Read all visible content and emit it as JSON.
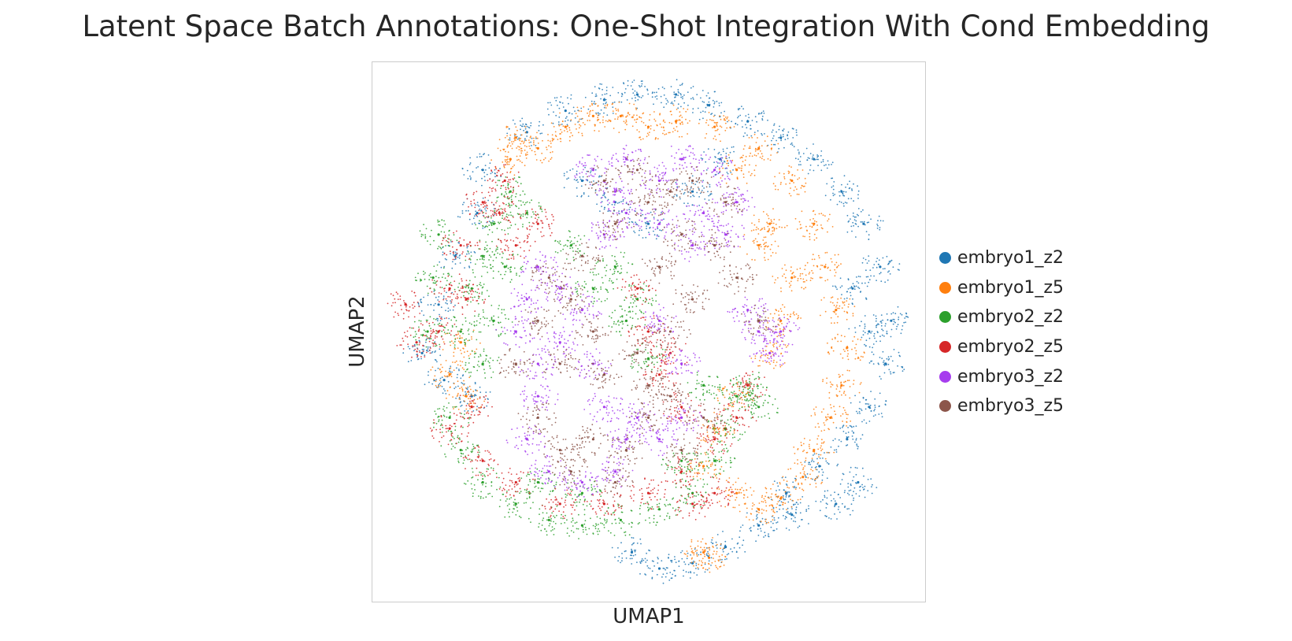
{
  "chart_data": {
    "type": "scatter",
    "title": "Latent Space Batch Annotations: One-Shot Integration With Cond Embedding",
    "xlabel": "UMAP1",
    "ylabel": "UMAP2",
    "grid": false,
    "legend_position": "right",
    "series": [
      {
        "name": "embryo1_z2",
        "color": "#1f77b4",
        "points": [
          [
            0.28,
            0.87
          ],
          [
            0.35,
            0.91
          ],
          [
            0.42,
            0.93
          ],
          [
            0.48,
            0.94
          ],
          [
            0.55,
            0.94
          ],
          [
            0.61,
            0.92
          ],
          [
            0.68,
            0.89
          ],
          [
            0.74,
            0.86
          ],
          [
            0.8,
            0.82
          ],
          [
            0.85,
            0.76
          ],
          [
            0.89,
            0.7
          ],
          [
            0.92,
            0.62
          ],
          [
            0.94,
            0.52
          ],
          [
            0.93,
            0.44
          ],
          [
            0.9,
            0.36
          ],
          [
            0.86,
            0.3
          ],
          [
            0.81,
            0.25
          ],
          [
            0.75,
            0.2
          ],
          [
            0.7,
            0.14
          ],
          [
            0.64,
            0.1
          ],
          [
            0.58,
            0.07
          ],
          [
            0.52,
            0.06
          ],
          [
            0.47,
            0.09
          ],
          [
            0.2,
            0.8
          ],
          [
            0.19,
            0.72
          ],
          [
            0.15,
            0.64
          ],
          [
            0.12,
            0.55
          ],
          [
            0.09,
            0.46
          ],
          [
            0.13,
            0.41
          ],
          [
            0.18,
            0.38
          ],
          [
            0.38,
            0.78
          ],
          [
            0.44,
            0.74
          ],
          [
            0.5,
            0.7
          ],
          [
            0.58,
            0.76
          ],
          [
            0.63,
            0.82
          ],
          [
            0.88,
            0.22
          ],
          [
            0.84,
            0.18
          ],
          [
            0.76,
            0.16
          ],
          [
            0.9,
            0.5
          ],
          [
            0.87,
            0.58
          ]
        ]
      },
      {
        "name": "embryo1_z5",
        "color": "#ff7f0e",
        "points": [
          [
            0.3,
            0.84
          ],
          [
            0.35,
            0.88
          ],
          [
            0.4,
            0.9
          ],
          [
            0.45,
            0.9
          ],
          [
            0.5,
            0.88
          ],
          [
            0.55,
            0.89
          ],
          [
            0.62,
            0.88
          ],
          [
            0.7,
            0.84
          ],
          [
            0.76,
            0.78
          ],
          [
            0.8,
            0.7
          ],
          [
            0.82,
            0.62
          ],
          [
            0.84,
            0.54
          ],
          [
            0.86,
            0.47
          ],
          [
            0.85,
            0.4
          ],
          [
            0.83,
            0.34
          ],
          [
            0.8,
            0.28
          ],
          [
            0.78,
            0.23
          ],
          [
            0.74,
            0.19
          ],
          [
            0.7,
            0.17
          ],
          [
            0.66,
            0.2
          ],
          [
            0.6,
            0.25
          ],
          [
            0.62,
            0.32
          ],
          [
            0.66,
            0.38
          ],
          [
            0.72,
            0.46
          ],
          [
            0.74,
            0.52
          ],
          [
            0.76,
            0.6
          ],
          [
            0.7,
            0.66
          ],
          [
            0.16,
            0.48
          ],
          [
            0.14,
            0.42
          ],
          [
            0.17,
            0.38
          ],
          [
            0.6,
            0.09
          ],
          [
            0.61,
            0.08
          ],
          [
            0.26,
            0.86
          ],
          [
            0.25,
            0.82
          ],
          [
            0.66,
            0.8
          ],
          [
            0.72,
            0.7
          ]
        ]
      },
      {
        "name": "embryo2_z2",
        "color": "#2ca02c",
        "points": [
          [
            0.25,
            0.76
          ],
          [
            0.22,
            0.7
          ],
          [
            0.2,
            0.64
          ],
          [
            0.18,
            0.58
          ],
          [
            0.16,
            0.5
          ],
          [
            0.2,
            0.44
          ],
          [
            0.14,
            0.34
          ],
          [
            0.16,
            0.28
          ],
          [
            0.2,
            0.22
          ],
          [
            0.26,
            0.18
          ],
          [
            0.32,
            0.15
          ],
          [
            0.38,
            0.14
          ],
          [
            0.45,
            0.15
          ],
          [
            0.52,
            0.17
          ],
          [
            0.58,
            0.2
          ],
          [
            0.62,
            0.26
          ],
          [
            0.64,
            0.32
          ],
          [
            0.66,
            0.38
          ],
          [
            0.6,
            0.4
          ],
          [
            0.5,
            0.45
          ],
          [
            0.46,
            0.52
          ],
          [
            0.4,
            0.58
          ],
          [
            0.44,
            0.62
          ],
          [
            0.48,
            0.56
          ],
          [
            0.28,
            0.72
          ],
          [
            0.24,
            0.62
          ],
          [
            0.22,
            0.52
          ],
          [
            0.7,
            0.36
          ],
          [
            0.68,
            0.4
          ],
          [
            0.38,
            0.2
          ],
          [
            0.3,
            0.22
          ],
          [
            0.12,
            0.68
          ],
          [
            0.11,
            0.6
          ],
          [
            0.1,
            0.5
          ],
          [
            0.56,
            0.26
          ],
          [
            0.36,
            0.66
          ]
        ]
      },
      {
        "name": "embryo2_z5",
        "color": "#d62728",
        "points": [
          [
            0.24,
            0.78
          ],
          [
            0.2,
            0.74
          ],
          [
            0.16,
            0.66
          ],
          [
            0.14,
            0.58
          ],
          [
            0.12,
            0.5
          ],
          [
            0.08,
            0.48
          ],
          [
            0.06,
            0.55
          ],
          [
            0.18,
            0.36
          ],
          [
            0.14,
            0.32
          ],
          [
            0.2,
            0.26
          ],
          [
            0.26,
            0.22
          ],
          [
            0.34,
            0.18
          ],
          [
            0.42,
            0.18
          ],
          [
            0.5,
            0.2
          ],
          [
            0.56,
            0.24
          ],
          [
            0.62,
            0.3
          ],
          [
            0.66,
            0.34
          ],
          [
            0.68,
            0.4
          ],
          [
            0.5,
            0.5
          ],
          [
            0.54,
            0.46
          ],
          [
            0.48,
            0.58
          ],
          [
            0.26,
            0.66
          ],
          [
            0.23,
            0.72
          ],
          [
            0.62,
            0.2
          ],
          [
            0.58,
            0.18
          ],
          [
            0.52,
            0.42
          ],
          [
            0.56,
            0.36
          ],
          [
            0.3,
            0.7
          ],
          [
            0.17,
            0.56
          ]
        ]
      },
      {
        "name": "embryo3_z2",
        "color": "#a63dee",
        "points": [
          [
            0.4,
            0.8
          ],
          [
            0.46,
            0.82
          ],
          [
            0.52,
            0.78
          ],
          [
            0.56,
            0.82
          ],
          [
            0.62,
            0.8
          ],
          [
            0.66,
            0.74
          ],
          [
            0.64,
            0.68
          ],
          [
            0.58,
            0.66
          ],
          [
            0.52,
            0.7
          ],
          [
            0.46,
            0.72
          ],
          [
            0.42,
            0.68
          ],
          [
            0.3,
            0.62
          ],
          [
            0.28,
            0.56
          ],
          [
            0.26,
            0.5
          ],
          [
            0.3,
            0.44
          ],
          [
            0.34,
            0.48
          ],
          [
            0.38,
            0.54
          ],
          [
            0.3,
            0.38
          ],
          [
            0.28,
            0.3
          ],
          [
            0.32,
            0.24
          ],
          [
            0.38,
            0.22
          ],
          [
            0.44,
            0.24
          ],
          [
            0.46,
            0.3
          ],
          [
            0.42,
            0.36
          ],
          [
            0.4,
            0.44
          ],
          [
            0.48,
            0.34
          ],
          [
            0.52,
            0.3
          ],
          [
            0.56,
            0.34
          ],
          [
            0.56,
            0.44
          ],
          [
            0.52,
            0.52
          ],
          [
            0.68,
            0.54
          ],
          [
            0.7,
            0.5
          ],
          [
            0.74,
            0.5
          ],
          [
            0.72,
            0.46
          ],
          [
            0.34,
            0.58
          ],
          [
            0.6,
            0.72
          ],
          [
            0.44,
            0.76
          ]
        ]
      },
      {
        "name": "embryo3_z5",
        "color": "#8c564b",
        "points": [
          [
            0.42,
            0.78
          ],
          [
            0.48,
            0.8
          ],
          [
            0.54,
            0.76
          ],
          [
            0.58,
            0.78
          ],
          [
            0.64,
            0.74
          ],
          [
            0.62,
            0.66
          ],
          [
            0.56,
            0.68
          ],
          [
            0.5,
            0.74
          ],
          [
            0.44,
            0.7
          ],
          [
            0.32,
            0.6
          ],
          [
            0.36,
            0.56
          ],
          [
            0.3,
            0.52
          ],
          [
            0.34,
            0.44
          ],
          [
            0.4,
            0.5
          ],
          [
            0.42,
            0.42
          ],
          [
            0.48,
            0.46
          ],
          [
            0.5,
            0.4
          ],
          [
            0.54,
            0.38
          ],
          [
            0.5,
            0.34
          ],
          [
            0.46,
            0.28
          ],
          [
            0.4,
            0.3
          ],
          [
            0.34,
            0.28
          ],
          [
            0.3,
            0.34
          ],
          [
            0.36,
            0.24
          ],
          [
            0.44,
            0.22
          ],
          [
            0.56,
            0.28
          ],
          [
            0.6,
            0.34
          ],
          [
            0.54,
            0.5
          ],
          [
            0.58,
            0.56
          ],
          [
            0.66,
            0.6
          ],
          [
            0.7,
            0.52
          ],
          [
            0.52,
            0.62
          ],
          [
            0.38,
            0.64
          ],
          [
            0.26,
            0.44
          ]
        ]
      }
    ]
  }
}
